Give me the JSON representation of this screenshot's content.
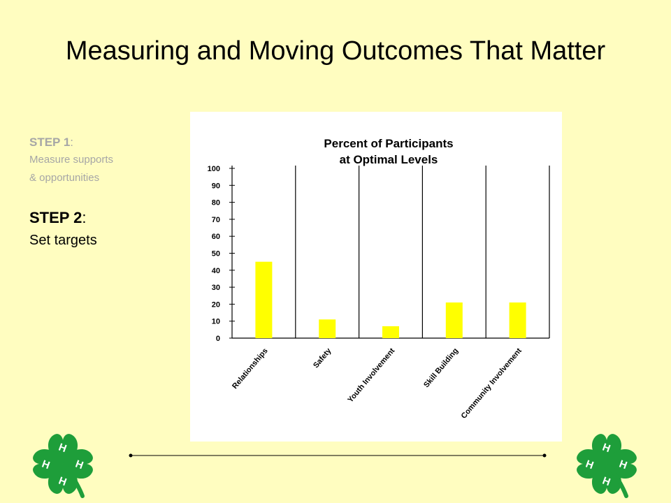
{
  "slide": {
    "title": "Measuring and Moving Outcomes That Matter",
    "step1": {
      "label": "STEP 1",
      "sep": ":",
      "lines": [
        "Measure supports",
        "& opportunities"
      ]
    },
    "step2": {
      "label": "STEP 2",
      "sep": ":",
      "line": "Set targets"
    }
  },
  "colors": {
    "background": "#FFFDC0",
    "bar": "#FFFF00",
    "logo": "#1E9E3A"
  },
  "logo": {
    "icon": "four-h-clover-icon",
    "letter": "H"
  },
  "chart_data": {
    "type": "bar",
    "title": [
      "Percent of Participants",
      "at Optimal Levels"
    ],
    "categories": [
      "Relationships",
      "Safety",
      "Youth Involvement",
      "Skill Building",
      "Community Involvement"
    ],
    "values": [
      45,
      11,
      7,
      21,
      21
    ],
    "ylim": [
      0,
      100
    ],
    "yticks": [
      0,
      10,
      20,
      30,
      40,
      50,
      60,
      70,
      80,
      90,
      100
    ],
    "xlabel": "",
    "ylabel": "",
    "legend": "none",
    "grid": "none"
  }
}
